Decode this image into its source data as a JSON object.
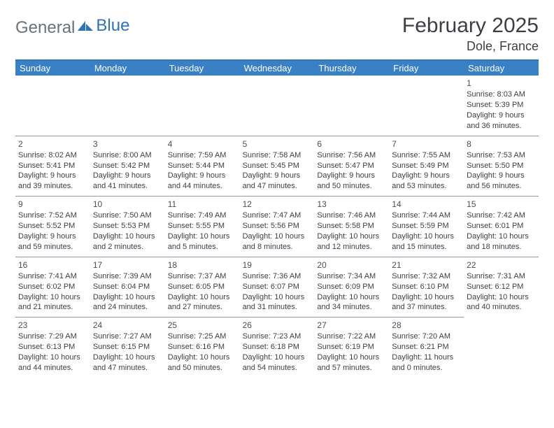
{
  "brand": {
    "text1": "General",
    "text2": "Blue"
  },
  "title": "February 2025",
  "location": "Dole, France",
  "colors": {
    "headerBg": "#3a80c5",
    "headerText": "#ffffff",
    "accent": "#2f73b7",
    "textDark": "#3b3f44",
    "rowBorder": "#8a9aa8",
    "logoGray": "#6b7178"
  },
  "dayNames": [
    "Sunday",
    "Monday",
    "Tuesday",
    "Wednesday",
    "Thursday",
    "Friday",
    "Saturday"
  ],
  "startOffset": 6,
  "days": [
    {
      "n": 1,
      "sr": "8:03 AM",
      "ss": "5:39 PM",
      "dl": "9 hours and 36 minutes."
    },
    {
      "n": 2,
      "sr": "8:02 AM",
      "ss": "5:41 PM",
      "dl": "9 hours and 39 minutes."
    },
    {
      "n": 3,
      "sr": "8:00 AM",
      "ss": "5:42 PM",
      "dl": "9 hours and 41 minutes."
    },
    {
      "n": 4,
      "sr": "7:59 AM",
      "ss": "5:44 PM",
      "dl": "9 hours and 44 minutes."
    },
    {
      "n": 5,
      "sr": "7:58 AM",
      "ss": "5:45 PM",
      "dl": "9 hours and 47 minutes."
    },
    {
      "n": 6,
      "sr": "7:56 AM",
      "ss": "5:47 PM",
      "dl": "9 hours and 50 minutes."
    },
    {
      "n": 7,
      "sr": "7:55 AM",
      "ss": "5:49 PM",
      "dl": "9 hours and 53 minutes."
    },
    {
      "n": 8,
      "sr": "7:53 AM",
      "ss": "5:50 PM",
      "dl": "9 hours and 56 minutes."
    },
    {
      "n": 9,
      "sr": "7:52 AM",
      "ss": "5:52 PM",
      "dl": "9 hours and 59 minutes."
    },
    {
      "n": 10,
      "sr": "7:50 AM",
      "ss": "5:53 PM",
      "dl": "10 hours and 2 minutes."
    },
    {
      "n": 11,
      "sr": "7:49 AM",
      "ss": "5:55 PM",
      "dl": "10 hours and 5 minutes."
    },
    {
      "n": 12,
      "sr": "7:47 AM",
      "ss": "5:56 PM",
      "dl": "10 hours and 8 minutes."
    },
    {
      "n": 13,
      "sr": "7:46 AM",
      "ss": "5:58 PM",
      "dl": "10 hours and 12 minutes."
    },
    {
      "n": 14,
      "sr": "7:44 AM",
      "ss": "5:59 PM",
      "dl": "10 hours and 15 minutes."
    },
    {
      "n": 15,
      "sr": "7:42 AM",
      "ss": "6:01 PM",
      "dl": "10 hours and 18 minutes."
    },
    {
      "n": 16,
      "sr": "7:41 AM",
      "ss": "6:02 PM",
      "dl": "10 hours and 21 minutes."
    },
    {
      "n": 17,
      "sr": "7:39 AM",
      "ss": "6:04 PM",
      "dl": "10 hours and 24 minutes."
    },
    {
      "n": 18,
      "sr": "7:37 AM",
      "ss": "6:05 PM",
      "dl": "10 hours and 27 minutes."
    },
    {
      "n": 19,
      "sr": "7:36 AM",
      "ss": "6:07 PM",
      "dl": "10 hours and 31 minutes."
    },
    {
      "n": 20,
      "sr": "7:34 AM",
      "ss": "6:09 PM",
      "dl": "10 hours and 34 minutes."
    },
    {
      "n": 21,
      "sr": "7:32 AM",
      "ss": "6:10 PM",
      "dl": "10 hours and 37 minutes."
    },
    {
      "n": 22,
      "sr": "7:31 AM",
      "ss": "6:12 PM",
      "dl": "10 hours and 40 minutes."
    },
    {
      "n": 23,
      "sr": "7:29 AM",
      "ss": "6:13 PM",
      "dl": "10 hours and 44 minutes."
    },
    {
      "n": 24,
      "sr": "7:27 AM",
      "ss": "6:15 PM",
      "dl": "10 hours and 47 minutes."
    },
    {
      "n": 25,
      "sr": "7:25 AM",
      "ss": "6:16 PM",
      "dl": "10 hours and 50 minutes."
    },
    {
      "n": 26,
      "sr": "7:23 AM",
      "ss": "6:18 PM",
      "dl": "10 hours and 54 minutes."
    },
    {
      "n": 27,
      "sr": "7:22 AM",
      "ss": "6:19 PM",
      "dl": "10 hours and 57 minutes."
    },
    {
      "n": 28,
      "sr": "7:20 AM",
      "ss": "6:21 PM",
      "dl": "11 hours and 0 minutes."
    }
  ],
  "labels": {
    "sunrise": "Sunrise: ",
    "sunset": "Sunset: ",
    "daylight": "Daylight: "
  }
}
